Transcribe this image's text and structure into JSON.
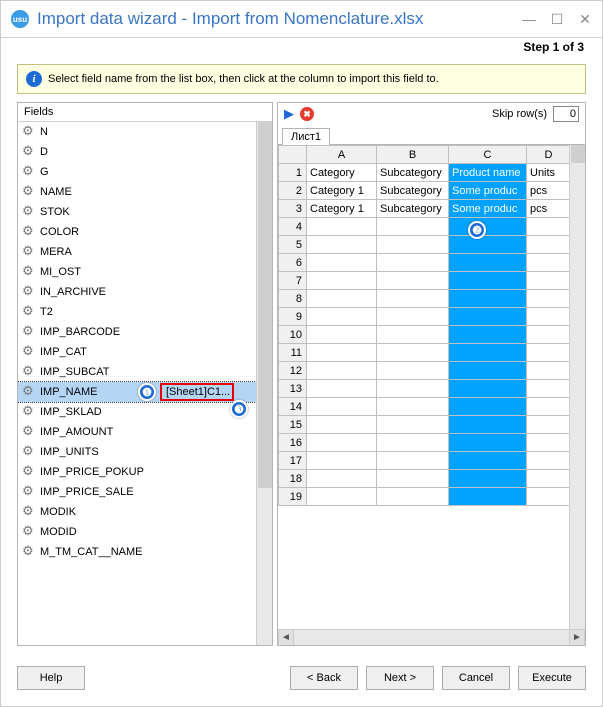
{
  "window": {
    "title": "Import data wizard - Import from Nomenclature.xlsx",
    "step": "Step 1 of 3"
  },
  "info": {
    "text": "Select field name from the list box, then click at the column to import this field to."
  },
  "fieldsPanel": {
    "header": "Fields",
    "selectedAssignment": "[Sheet1]C1...",
    "items": [
      {
        "label": "N"
      },
      {
        "label": "D"
      },
      {
        "label": "G"
      },
      {
        "label": "NAME"
      },
      {
        "label": "STOK"
      },
      {
        "label": "COLOR"
      },
      {
        "label": "MERA"
      },
      {
        "label": "MI_OST"
      },
      {
        "label": "IN_ARCHIVE"
      },
      {
        "label": "T2"
      },
      {
        "label": "IMP_BARCODE"
      },
      {
        "label": "IMP_CAT"
      },
      {
        "label": "IMP_SUBCAT"
      },
      {
        "label": "IMP_NAME",
        "selected": true,
        "assigned": true
      },
      {
        "label": "IMP_SKLAD"
      },
      {
        "label": "IMP_AMOUNT"
      },
      {
        "label": "IMP_UNITS"
      },
      {
        "label": "IMP_PRICE_POKUP"
      },
      {
        "label": "IMP_PRICE_SALE"
      },
      {
        "label": "MODIK"
      },
      {
        "label": "MODID"
      },
      {
        "label": "M_TM_CAT__NAME"
      }
    ]
  },
  "rightPanel": {
    "skipLabel": "Skip row(s)",
    "skipValue": "0",
    "tabLabel": "Лист1",
    "columns": [
      "A",
      "B",
      "C",
      "D"
    ],
    "selectedColumn": "C",
    "rows": [
      {
        "n": "1",
        "A": "Category",
        "B": "Subcategory",
        "C": "Product name",
        "D": "Units"
      },
      {
        "n": "2",
        "A": "Category 1",
        "B": "Subcategory",
        "C": "Some produc",
        "D": "pcs"
      },
      {
        "n": "3",
        "A": "Category 1",
        "B": "Subcategory",
        "C": "Some produc",
        "D": "pcs"
      },
      {
        "n": "4"
      },
      {
        "n": "5"
      },
      {
        "n": "6"
      },
      {
        "n": "7"
      },
      {
        "n": "8"
      },
      {
        "n": "9"
      },
      {
        "n": "10"
      },
      {
        "n": "11"
      },
      {
        "n": "12"
      },
      {
        "n": "13"
      },
      {
        "n": "14"
      },
      {
        "n": "15"
      },
      {
        "n": "16"
      },
      {
        "n": "17"
      },
      {
        "n": "18"
      },
      {
        "n": "19"
      }
    ]
  },
  "callouts": {
    "c1": "❶",
    "c2": "❷",
    "c3": "❸"
  },
  "buttons": {
    "help": "Help",
    "back": "< Back",
    "next": "Next >",
    "cancel": "Cancel",
    "execute": "Execute"
  },
  "colors": {
    "accent": "#3a75c4",
    "highlightCol": "#00a2ff",
    "redBox": "#e60000",
    "infoBg": "#ffffe1",
    "selectedRow": "#b5d5f5"
  }
}
